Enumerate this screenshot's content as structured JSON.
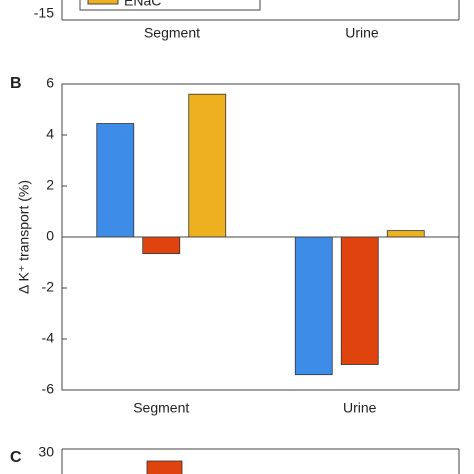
{
  "chart_data": [
    {
      "type": "bar",
      "categories": [
        "Segment",
        "Urine"
      ],
      "yticks": [
        -15
      ],
      "legend": [
        {
          "label": "ENaC",
          "color": "#edb120"
        }
      ]
    },
    {
      "type": "bar",
      "panel": "B",
      "ylabel": "Δ K⁺ transport (%)",
      "categories": [
        "Segment",
        "Urine"
      ],
      "series": [
        {
          "color": "#3c8ce8",
          "values": [
            4.45,
            -5.4
          ]
        },
        {
          "color": "#e0440e",
          "values": [
            -0.65,
            -5.0
          ]
        },
        {
          "color": "#edb120",
          "values": [
            5.6,
            0.25
          ]
        }
      ],
      "ylim": [
        -6,
        6
      ],
      "yticks": [
        -6,
        -4,
        -2,
        0,
        2,
        4,
        6
      ]
    },
    {
      "type": "bar",
      "panel": "C",
      "ylim": [
        0,
        30
      ],
      "yticks": [
        30
      ],
      "series": [
        {
          "color": "#e0440e",
          "values": [
            27
          ]
        }
      ]
    }
  ]
}
